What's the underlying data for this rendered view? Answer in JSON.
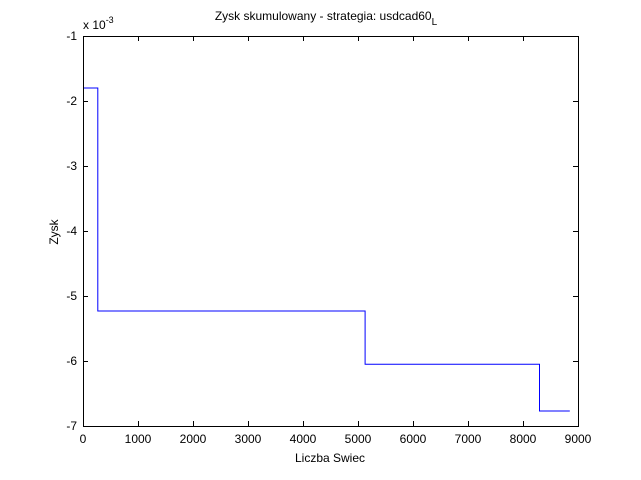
{
  "chart_data": {
    "type": "line",
    "title_main": "Zysk skumulowany - strategia: usdcad60",
    "title_subscript": "L",
    "xlabel": "Liczba Swiec",
    "ylabel": "Zysk",
    "y_multiplier_base": "x 10",
    "y_multiplier_exp": "-3",
    "xlim": [
      0,
      9000
    ],
    "ylim": [
      -7,
      -1
    ],
    "x_ticks": [
      0,
      1000,
      2000,
      3000,
      4000,
      5000,
      6000,
      7000,
      8000,
      9000
    ],
    "x_tick_labels": [
      "0",
      "1000",
      "2000",
      "3000",
      "4000",
      "5000",
      "6000",
      "7000",
      "8000",
      "9000"
    ],
    "y_ticks": [
      -7,
      -6,
      -5,
      -4,
      -3,
      -2,
      -1
    ],
    "y_tick_labels": [
      "-7",
      "-6",
      "-5",
      "-4",
      "-3",
      "-2",
      "-1"
    ],
    "grid": false,
    "series": [
      {
        "color": "#0000ff",
        "line_style": "stairs",
        "x": [
          0,
          270,
          270,
          5130,
          5130,
          8300,
          8300,
          8850
        ],
        "y": [
          -1.8,
          -1.8,
          -5.23,
          -5.23,
          -6.05,
          -6.05,
          -6.77,
          -6.77
        ]
      }
    ]
  }
}
